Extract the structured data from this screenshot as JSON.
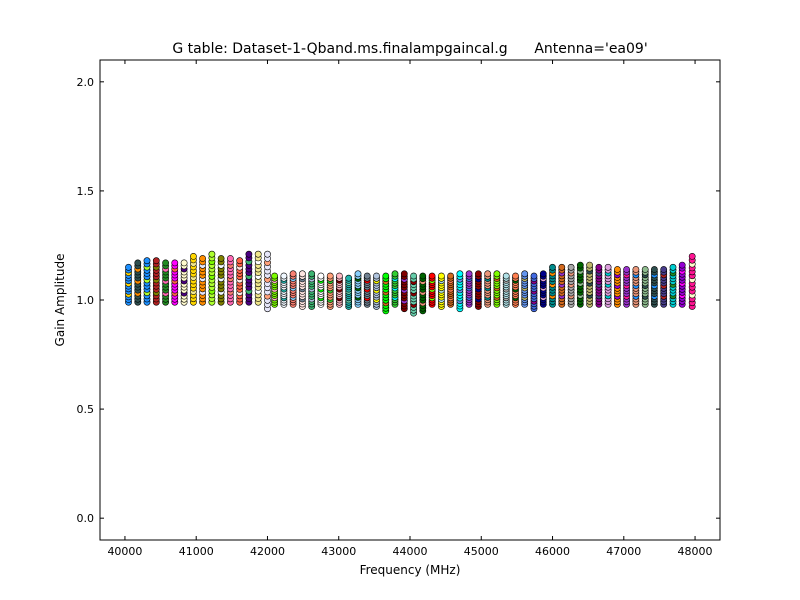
{
  "chart_data": {
    "type": "scatter",
    "title": "G table: Dataset-1-Qband.ms.finalampgaincal.g      Antenna='ea09'",
    "xlabel": "Frequency (MHz)",
    "ylabel": "Gain Amplitude",
    "xlim": [
      39650,
      48350
    ],
    "ylim": [
      -0.1,
      2.1
    ],
    "xticks": [
      40000,
      41000,
      42000,
      43000,
      44000,
      45000,
      46000,
      47000,
      48000
    ],
    "yticks": [
      0.0,
      0.5,
      1.0,
      1.5,
      2.0
    ],
    "ytick_labels": [
      "0.0",
      "0.5",
      "1.0",
      "1.5",
      "2.0"
    ],
    "grid": false,
    "legend": "none",
    "marker": "circle",
    "marker_edge_color": "#000000",
    "spw_channel_columns": [
      {
        "x": 40050,
        "ymin": 0.99,
        "ymax": 1.15,
        "color": "#1e90ff"
      },
      {
        "x": 40180,
        "ymin": 0.99,
        "ymax": 1.17,
        "color": "#2f4f4f"
      },
      {
        "x": 40310,
        "ymin": 0.99,
        "ymax": 1.18,
        "color": "#1e90ff"
      },
      {
        "x": 40440,
        "ymin": 0.99,
        "ymax": 1.18,
        "color": "#b22222"
      },
      {
        "x": 40570,
        "ymin": 0.99,
        "ymax": 1.17,
        "color": "#228b22"
      },
      {
        "x": 40700,
        "ymin": 0.99,
        "ymax": 1.17,
        "color": "#ff00ff"
      },
      {
        "x": 40830,
        "ymin": 0.99,
        "ymax": 1.17,
        "color": "#fffacd"
      },
      {
        "x": 40960,
        "ymin": 0.99,
        "ymax": 1.2,
        "color": "#ffd700"
      },
      {
        "x": 41090,
        "ymin": 0.99,
        "ymax": 1.19,
        "color": "#ff8c00"
      },
      {
        "x": 41220,
        "ymin": 0.99,
        "ymax": 1.21,
        "color": "#adff2f"
      },
      {
        "x": 41350,
        "ymin": 0.99,
        "ymax": 1.19,
        "color": "#808000"
      },
      {
        "x": 41480,
        "ymin": 0.99,
        "ymax": 1.19,
        "color": "#ff69b4"
      },
      {
        "x": 41610,
        "ymin": 0.99,
        "ymax": 1.18,
        "color": "#ff6347"
      },
      {
        "x": 41740,
        "ymin": 0.99,
        "ymax": 1.21,
        "color": "#4b0082"
      },
      {
        "x": 41870,
        "ymin": 0.99,
        "ymax": 1.21,
        "color": "#f0e68c"
      },
      {
        "x": 42000,
        "ymin": 0.96,
        "ymax": 1.21,
        "color": "#e6e6fa"
      },
      {
        "x": 42100,
        "ymin": 0.98,
        "ymax": 1.11,
        "color": "#7cfc00"
      },
      {
        "x": 42230,
        "ymin": 0.98,
        "ymax": 1.11,
        "color": "#f0f8ff"
      },
      {
        "x": 42360,
        "ymin": 0.98,
        "ymax": 1.12,
        "color": "#fa8072"
      },
      {
        "x": 42490,
        "ymin": 0.97,
        "ymax": 1.12,
        "color": "#ffe4e1"
      },
      {
        "x": 42620,
        "ymin": 0.97,
        "ymax": 1.12,
        "color": "#3cb371"
      },
      {
        "x": 42750,
        "ymin": 0.98,
        "ymax": 1.11,
        "color": "#ffffff"
      },
      {
        "x": 42880,
        "ymin": 0.97,
        "ymax": 1.11,
        "color": "#ffa07a"
      },
      {
        "x": 43010,
        "ymin": 0.98,
        "ymax": 1.11,
        "color": "#ffb6c1"
      },
      {
        "x": 43140,
        "ymin": 0.97,
        "ymax": 1.1,
        "color": "#20b2aa"
      },
      {
        "x": 43270,
        "ymin": 0.98,
        "ymax": 1.12,
        "color": "#87cefa"
      },
      {
        "x": 43400,
        "ymin": 0.98,
        "ymax": 1.11,
        "color": "#708090"
      },
      {
        "x": 43530,
        "ymin": 0.97,
        "ymax": 1.11,
        "color": "#b0c4de"
      },
      {
        "x": 43660,
        "ymin": 0.95,
        "ymax": 1.11,
        "color": "#00ff00"
      },
      {
        "x": 43790,
        "ymin": 0.98,
        "ymax": 1.12,
        "color": "#32cd32"
      },
      {
        "x": 43920,
        "ymin": 0.96,
        "ymax": 1.12,
        "color": "#800000"
      },
      {
        "x": 44050,
        "ymin": 0.94,
        "ymax": 1.11,
        "color": "#66cdaa"
      },
      {
        "x": 44180,
        "ymin": 0.95,
        "ymax": 1.11,
        "color": "#006400"
      },
      {
        "x": 44310,
        "ymin": 0.98,
        "ymax": 1.11,
        "color": "#ff0000"
      },
      {
        "x": 44440,
        "ymin": 0.97,
        "ymax": 1.11,
        "color": "#ffff00"
      },
      {
        "x": 44570,
        "ymin": 0.98,
        "ymax": 1.11,
        "color": "#d2691e"
      },
      {
        "x": 44700,
        "ymin": 0.96,
        "ymax": 1.12,
        "color": "#00ffff"
      },
      {
        "x": 44830,
        "ymin": 0.98,
        "ymax": 1.12,
        "color": "#9932cc"
      },
      {
        "x": 44960,
        "ymin": 0.97,
        "ymax": 1.12,
        "color": "#8b0000"
      },
      {
        "x": 45090,
        "ymin": 0.98,
        "ymax": 1.12,
        "color": "#e9967a"
      },
      {
        "x": 45220,
        "ymin": 0.98,
        "ymax": 1.12,
        "color": "#7fff00"
      },
      {
        "x": 45350,
        "ymin": 0.98,
        "ymax": 1.11,
        "color": "#b0e0e6"
      },
      {
        "x": 45480,
        "ymin": 0.98,
        "ymax": 1.11,
        "color": "#ff7f50"
      },
      {
        "x": 45610,
        "ymin": 0.98,
        "ymax": 1.12,
        "color": "#6495ed"
      },
      {
        "x": 45740,
        "ymin": 0.96,
        "ymax": 1.11,
        "color": "#4169e1"
      },
      {
        "x": 45870,
        "ymin": 0.98,
        "ymax": 1.12,
        "color": "#00008b"
      },
      {
        "x": 46000,
        "ymin": 0.98,
        "ymax": 1.15,
        "color": "#008b8b"
      },
      {
        "x": 46130,
        "ymin": 0.98,
        "ymax": 1.15,
        "color": "#d2691e"
      },
      {
        "x": 46260,
        "ymin": 0.98,
        "ymax": 1.15,
        "color": "#a9a9a9"
      },
      {
        "x": 46390,
        "ymin": 0.98,
        "ymax": 1.16,
        "color": "#006400"
      },
      {
        "x": 46520,
        "ymin": 0.98,
        "ymax": 1.16,
        "color": "#bdb76b"
      },
      {
        "x": 46650,
        "ymin": 0.98,
        "ymax": 1.15,
        "color": "#8b008b"
      },
      {
        "x": 46780,
        "ymin": 0.98,
        "ymax": 1.15,
        "color": "#dda0dd"
      },
      {
        "x": 46910,
        "ymin": 0.98,
        "ymax": 1.14,
        "color": "#ff8c00"
      },
      {
        "x": 47040,
        "ymin": 0.98,
        "ymax": 1.14,
        "color": "#9932cc"
      },
      {
        "x": 47170,
        "ymin": 0.98,
        "ymax": 1.14,
        "color": "#e9967a"
      },
      {
        "x": 47300,
        "ymin": 0.98,
        "ymax": 1.14,
        "color": "#8fbc8f"
      },
      {
        "x": 47430,
        "ymin": 0.98,
        "ymax": 1.14,
        "color": "#2f4f4f"
      },
      {
        "x": 47560,
        "ymin": 0.98,
        "ymax": 1.14,
        "color": "#483d8b"
      },
      {
        "x": 47690,
        "ymin": 0.98,
        "ymax": 1.15,
        "color": "#00ced1"
      },
      {
        "x": 47820,
        "ymin": 0.98,
        "ymax": 1.16,
        "color": "#9400d3"
      },
      {
        "x": 47960,
        "ymin": 0.97,
        "ymax": 1.2,
        "color": "#ff1493"
      }
    ]
  }
}
